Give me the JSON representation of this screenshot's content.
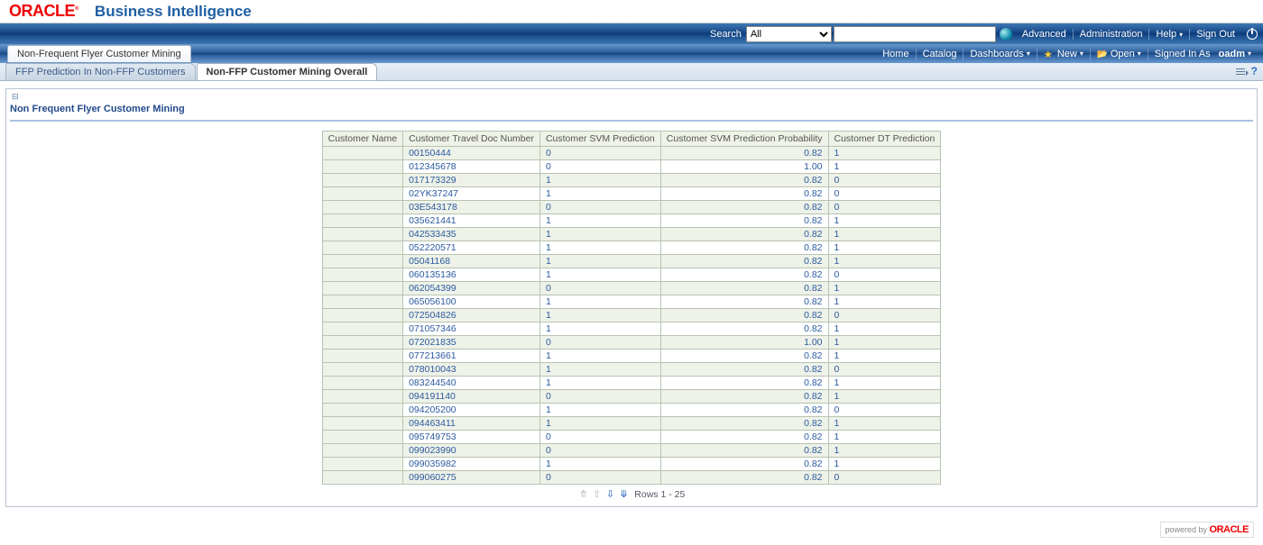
{
  "brand": {
    "logo": "ORACLE",
    "product": "Business Intelligence"
  },
  "search": {
    "label": "Search",
    "scope": "All",
    "value": ""
  },
  "topLinks": {
    "advanced": "Advanced",
    "admin": "Administration",
    "help": "Help",
    "signout": "Sign Out"
  },
  "secondBar": {
    "pageTab": "Non-Frequent Flyer Customer Mining",
    "home": "Home",
    "catalog": "Catalog",
    "dashboards": "Dashboards",
    "new": "New",
    "open": "Open",
    "signedIn": "Signed In As",
    "user": "oadm"
  },
  "subTabs": {
    "t1": "FFP Prediction In Non-FFP Customers",
    "t2": "Non-FFP Customer Mining Overall"
  },
  "section": {
    "title": "Non Frequent Flyer Customer Mining"
  },
  "table": {
    "headers": {
      "name": "Customer Name",
      "doc": "Customer Travel Doc Number",
      "svm": "Customer SVM Prediction",
      "prob": "Customer SVM Prediction Probability",
      "dt": "Customer DT Prediction"
    },
    "rows": [
      {
        "name": "",
        "doc": "00150444",
        "svm": "0",
        "prob": "0.82",
        "dt": "1"
      },
      {
        "name": "",
        "doc": "012345678",
        "svm": "0",
        "prob": "1.00",
        "dt": "1"
      },
      {
        "name": "",
        "doc": "017173329",
        "svm": "1",
        "prob": "0.82",
        "dt": "0"
      },
      {
        "name": "",
        "doc": "02YK37247",
        "svm": "1",
        "prob": "0.82",
        "dt": "0"
      },
      {
        "name": "",
        "doc": "03E543178",
        "svm": "0",
        "prob": "0.82",
        "dt": "0"
      },
      {
        "name": "",
        "doc": "035621441",
        "svm": "1",
        "prob": "0.82",
        "dt": "1"
      },
      {
        "name": "",
        "doc": "042533435",
        "svm": "1",
        "prob": "0.82",
        "dt": "1"
      },
      {
        "name": "",
        "doc": "052220571",
        "svm": "1",
        "prob": "0.82",
        "dt": "1"
      },
      {
        "name": "",
        "doc": "05041168",
        "svm": "1",
        "prob": "0.82",
        "dt": "1"
      },
      {
        "name": "",
        "doc": "060135136",
        "svm": "1",
        "prob": "0.82",
        "dt": "0"
      },
      {
        "name": "",
        "doc": "062054399",
        "svm": "0",
        "prob": "0.82",
        "dt": "1"
      },
      {
        "name": "",
        "doc": "065056100",
        "svm": "1",
        "prob": "0.82",
        "dt": "1"
      },
      {
        "name": "",
        "doc": "072504826",
        "svm": "1",
        "prob": "0.82",
        "dt": "0"
      },
      {
        "name": "",
        "doc": "071057346",
        "svm": "1",
        "prob": "0.82",
        "dt": "1"
      },
      {
        "name": "",
        "doc": "072021835",
        "svm": "0",
        "prob": "1.00",
        "dt": "1"
      },
      {
        "name": "",
        "doc": "077213661",
        "svm": "1",
        "prob": "0.82",
        "dt": "1"
      },
      {
        "name": "",
        "doc": "078010043",
        "svm": "1",
        "prob": "0.82",
        "dt": "0"
      },
      {
        "name": "",
        "doc": "083244540",
        "svm": "1",
        "prob": "0.82",
        "dt": "1"
      },
      {
        "name": "",
        "doc": "094191140",
        "svm": "0",
        "prob": "0.82",
        "dt": "1"
      },
      {
        "name": "",
        "doc": "094205200",
        "svm": "1",
        "prob": "0.82",
        "dt": "0"
      },
      {
        "name": "",
        "doc": "094463411",
        "svm": "1",
        "prob": "0.82",
        "dt": "1"
      },
      {
        "name": "",
        "doc": "095749753",
        "svm": "0",
        "prob": "0.82",
        "dt": "1"
      },
      {
        "name": "",
        "doc": "099023990",
        "svm": "0",
        "prob": "0.82",
        "dt": "1"
      },
      {
        "name": "",
        "doc": "099035982",
        "svm": "1",
        "prob": "0.82",
        "dt": "1"
      },
      {
        "name": "",
        "doc": "099060275",
        "svm": "0",
        "prob": "0.82",
        "dt": "0"
      }
    ]
  },
  "pager": {
    "label": "Rows 1 - 25"
  },
  "footer": {
    "poweredBy": "powered by",
    "oracle": "ORACLE"
  }
}
